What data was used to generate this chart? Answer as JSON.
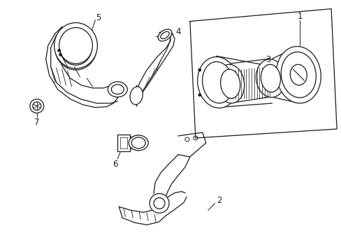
{
  "bg_color": "#ffffff",
  "line_color": "#1a1a1a",
  "line_width": 0.9,
  "fig_width": 4.89,
  "fig_height": 3.6,
  "dpi": 100,
  "label_fontsize": 8.5
}
